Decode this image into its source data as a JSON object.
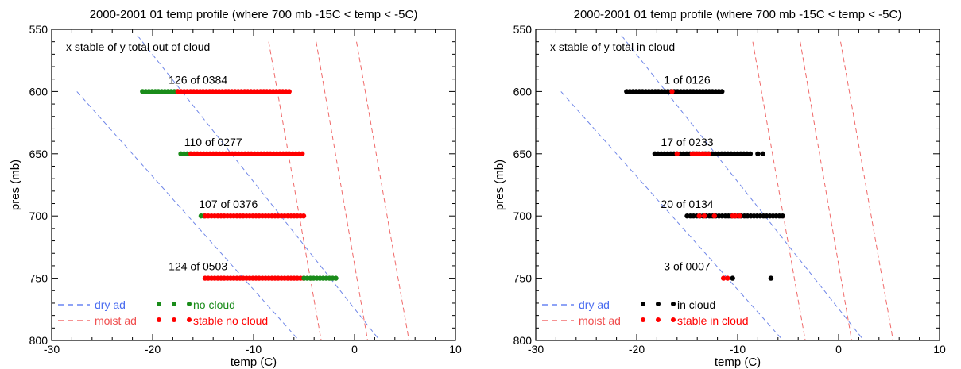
{
  "chart_data": [
    {
      "type": "scatter",
      "title": "2000-2001 01 temp profile (where 700 mb -15C < temp < -5C)",
      "xlabel": "temp (C)",
      "ylabel": "pres (mb)",
      "xlim": [
        -30,
        10
      ],
      "ylim": [
        800,
        550
      ],
      "y_inverted": true,
      "x_ticks": [
        "-30",
        "-20",
        "-10",
        "0",
        "10"
      ],
      "y_ticks": [
        "550",
        "600",
        "650",
        "700",
        "750",
        "800"
      ],
      "corner_note": "x stable of y total out of cloud",
      "ref_lines": [
        {
          "kind": "dry",
          "points": [
            [
              -27.5,
              600
            ],
            [
              -5.5,
              800
            ]
          ]
        },
        {
          "kind": "dry",
          "points": [
            [
              -21.5,
              555
            ],
            [
              2.5,
              800
            ]
          ]
        },
        {
          "kind": "moist",
          "points": [
            [
              -8.5,
              560
            ],
            [
              -3.3,
              800
            ]
          ]
        },
        {
          "kind": "moist",
          "points": [
            [
              -3.8,
              560
            ],
            [
              1.3,
              800
            ]
          ]
        },
        {
          "kind": "moist",
          "points": [
            [
              0.2,
              560
            ],
            [
              5.4,
              800
            ]
          ]
        }
      ],
      "levels": [
        {
          "pressure": 600,
          "label": "126 of 0384",
          "label_x": -15.5,
          "ranges": [
            {
              "status": "no cloud",
              "from": -21,
              "to": -17.5
            },
            {
              "status": "stable no cloud",
              "from": -17.5,
              "to": -6.2
            }
          ]
        },
        {
          "pressure": 650,
          "label": "110 of 0277",
          "label_x": -14,
          "ranges": [
            {
              "status": "no cloud",
              "from": -17.2,
              "to": -16.2
            },
            {
              "status": "stable no cloud",
              "from": -16.2,
              "to": -5
            }
          ]
        },
        {
          "pressure": 700,
          "label": "107 of 0376",
          "label_x": -12.5,
          "ranges": [
            {
              "status": "no cloud",
              "from": -15.2,
              "to": -14.8
            },
            {
              "status": "stable no cloud",
              "from": -14.8,
              "to": -5
            }
          ]
        },
        {
          "pressure": 750,
          "label": "124 of 0503",
          "label_x": -15.5,
          "ranges": [
            {
              "status": "stable no cloud",
              "from": -14.8,
              "to": -5
            },
            {
              "status": "no cloud",
              "from": -5,
              "to": -1.8
            }
          ]
        }
      ],
      "legend": {
        "position": "bottom-left",
        "lines": [
          {
            "label": "dry ad",
            "color": "#4a6cf0"
          },
          {
            "label": "moist ad",
            "color": "#f05050"
          }
        ],
        "markers": [
          {
            "label": "no cloud",
            "color": "#1a8c1a"
          },
          {
            "label": "stable no cloud",
            "color": "#ff0000"
          }
        ]
      }
    },
    {
      "type": "scatter",
      "title": "2000-2001 01 temp profile (where 700 mb -15C < temp < -5C)",
      "xlabel": "temp (C)",
      "ylabel": "pres (mb)",
      "xlim": [
        -30,
        10
      ],
      "ylim": [
        800,
        550
      ],
      "y_inverted": true,
      "x_ticks": [
        "-30",
        "-20",
        "-10",
        "0",
        "10"
      ],
      "y_ticks": [
        "550",
        "600",
        "650",
        "700",
        "750",
        "800"
      ],
      "corner_note": "x stable of y total in cloud",
      "ref_lines": [
        {
          "kind": "dry",
          "points": [
            [
              -27.5,
              600
            ],
            [
              -5.5,
              800
            ]
          ]
        },
        {
          "kind": "dry",
          "points": [
            [
              -21.5,
              555
            ],
            [
              2.5,
              800
            ]
          ]
        },
        {
          "kind": "moist",
          "points": [
            [
              -8.5,
              560
            ],
            [
              -3.3,
              800
            ]
          ]
        },
        {
          "kind": "moist",
          "points": [
            [
              -3.8,
              560
            ],
            [
              1.3,
              800
            ]
          ]
        },
        {
          "kind": "moist",
          "points": [
            [
              0.2,
              560
            ],
            [
              5.4,
              800
            ]
          ]
        }
      ],
      "levels": [
        {
          "pressure": 600,
          "label": "1 of 0126",
          "label_x": -15,
          "ranges": [
            {
              "status": "in cloud",
              "from": -21,
              "to": -11.5
            }
          ],
          "stable_points": [
            -16.5
          ]
        },
        {
          "pressure": 650,
          "label": "17 of 0233",
          "label_x": -15,
          "ranges": [
            {
              "status": "in cloud",
              "from": -18.2,
              "to": -8.5
            }
          ],
          "stable_points": [
            -14.5,
            -14.3,
            -14.0,
            -13.8,
            -13.5,
            -13.3,
            -12.9,
            -16.0
          ],
          "extra_points": [
            -8.0,
            -7.5
          ]
        },
        {
          "pressure": 700,
          "label": "20 of 0134",
          "label_x": -15,
          "ranges": [
            {
              "status": "in cloud",
              "from": -15,
              "to": -5.5
            }
          ],
          "stable_points": [
            -13.8,
            -12.3,
            -10.5,
            -10.2,
            -9.8,
            -13.3
          ]
        },
        {
          "pressure": 750,
          "label": "3 of 0007",
          "label_x": -15,
          "ranges": [],
          "stable_points": [
            -11.4,
            -11.0
          ],
          "extra_points": [
            -10.5,
            -6.7
          ]
        }
      ],
      "legend": {
        "position": "bottom-left",
        "lines": [
          {
            "label": "dry ad",
            "color": "#4a6cf0"
          },
          {
            "label": "moist ad",
            "color": "#f05050"
          }
        ],
        "markers": [
          {
            "label": "in cloud",
            "color": "#000000"
          },
          {
            "label": "stable in cloud",
            "color": "#ff0000"
          }
        ]
      }
    }
  ]
}
